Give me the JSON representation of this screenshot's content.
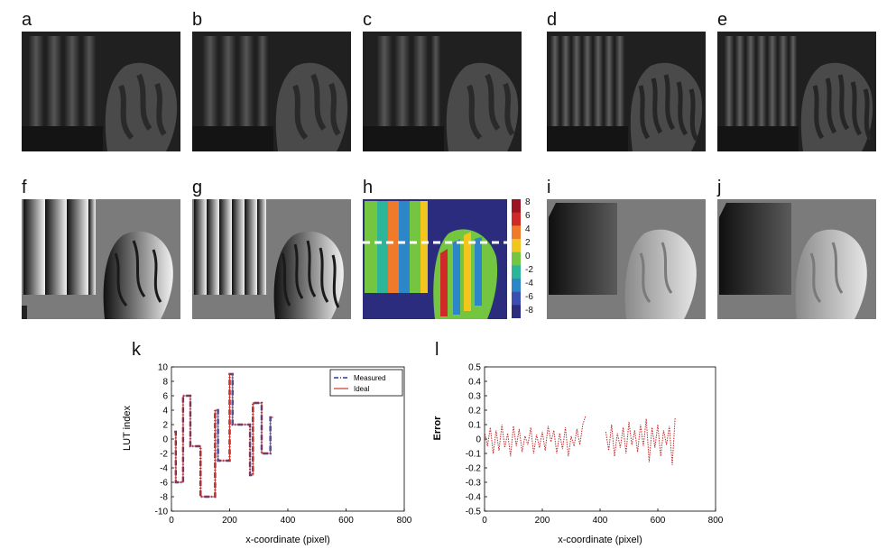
{
  "row1_labels": [
    "a",
    "b",
    "c",
    "d",
    "e"
  ],
  "row2_labels": [
    "f",
    "g",
    "h",
    "i",
    "j"
  ],
  "colorbar_ticks": [
    "8",
    "6",
    "4",
    "2",
    "0",
    "-2",
    "-4",
    "-6",
    "-8"
  ],
  "colorbar_colors": [
    "#9b1622",
    "#cf2a27",
    "#ef7a2a",
    "#f2c51f",
    "#74c53f",
    "#2db59a",
    "#2d86c8",
    "#3b4fb3",
    "#2b2c7d"
  ],
  "chart_k_label": "k",
  "chart_l_label": "l",
  "chart_data": [
    {
      "type": "line",
      "xlabel": "x-coordinate (pixel)",
      "ylabel": "LUT index",
      "xlim": [
        0,
        800
      ],
      "ylim": [
        -10,
        10
      ],
      "xticks": [
        "0",
        "200",
        "400",
        "600",
        "800"
      ],
      "yticks": [
        "10",
        "8",
        "6",
        "4",
        "2",
        "0",
        "-2",
        "-4",
        "-6",
        "-8",
        "-10"
      ],
      "legend": [
        "Measured",
        "Ideal"
      ],
      "legend_position": "top-right",
      "series": [
        {
          "name": "Measured",
          "color": "#2b3a8f",
          "x": [
            10,
            15,
            15,
            40,
            40,
            65,
            65,
            100,
            100,
            150,
            150,
            160,
            160,
            200,
            200,
            210,
            210,
            270,
            270,
            280,
            280,
            310,
            310,
            340,
            340,
            350
          ],
          "y": [
            1,
            1,
            -6,
            -6,
            6,
            6,
            -1,
            -1,
            -8,
            -8,
            4,
            4,
            -3,
            -3,
            9,
            9,
            2,
            2,
            -5,
            -5,
            5,
            5,
            -2,
            -2,
            3,
            3
          ]
        },
        {
          "name": "Ideal",
          "color": "#d0342c",
          "x": [
            10,
            15,
            15,
            40,
            40,
            65,
            65,
            100,
            100,
            150,
            150,
            160,
            160,
            200,
            200,
            210,
            210,
            270,
            270,
            280,
            280,
            310,
            310,
            340,
            340,
            350
          ],
          "y": [
            1,
            1,
            -6,
            -6,
            6,
            6,
            -1,
            -1,
            -8,
            -8,
            4,
            4,
            -3,
            -3,
            9,
            9,
            2,
            2,
            -5,
            -5,
            5,
            5,
            -2,
            -2,
            3,
            3
          ]
        }
      ]
    },
    {
      "type": "line",
      "xlabel": "x-coordinate (pixel)",
      "ylabel": "Error",
      "xlim": [
        0,
        800
      ],
      "ylim": [
        -0.5,
        0.5
      ],
      "xticks": [
        "0",
        "200",
        "400",
        "600",
        "800"
      ],
      "yticks": [
        "0.5",
        "0.4",
        "0.3",
        "0.2",
        "0.1",
        "0",
        "-0.1",
        "-0.2",
        "-0.3",
        "-0.4",
        "-0.5"
      ],
      "series": [
        {
          "name": "",
          "color": "#c0282a",
          "x": [
            0,
            10,
            20,
            30,
            40,
            50,
            60,
            70,
            80,
            90,
            100,
            110,
            120,
            130,
            140,
            150,
            160,
            170,
            180,
            190,
            200,
            210,
            220,
            230,
            240,
            250,
            260,
            270,
            280,
            290,
            300,
            310,
            320,
            330,
            340,
            350,
            420,
            430,
            440,
            450,
            460,
            470,
            480,
            490,
            500,
            510,
            520,
            530,
            540,
            550,
            560,
            570,
            580,
            590,
            600,
            610,
            620,
            630,
            640,
            650,
            660
          ],
          "y": [
            0.05,
            -0.05,
            0.08,
            -0.1,
            0.06,
            -0.08,
            0.1,
            -0.06,
            0.04,
            -0.12,
            0.09,
            -0.05,
            0.07,
            -0.09,
            0.02,
            -0.04,
            0.08,
            -0.1,
            0.03,
            -0.06,
            0.05,
            -0.08,
            0.09,
            -0.02,
            0.06,
            -0.1,
            0.04,
            -0.07,
            0.08,
            -0.12,
            0.02,
            -0.05,
            0.07,
            -0.04,
            0.1,
            0.16,
            0.05,
            -0.08,
            0.1,
            -0.12,
            0.04,
            -0.06,
            0.08,
            -0.1,
            0.12,
            -0.04,
            0.06,
            -0.09,
            0.1,
            -0.05,
            0.14,
            -0.16,
            0.08,
            -0.06,
            0.1,
            -0.12,
            0.06,
            -0.04,
            0.09,
            -0.18,
            0.15
          ]
        }
      ]
    }
  ]
}
